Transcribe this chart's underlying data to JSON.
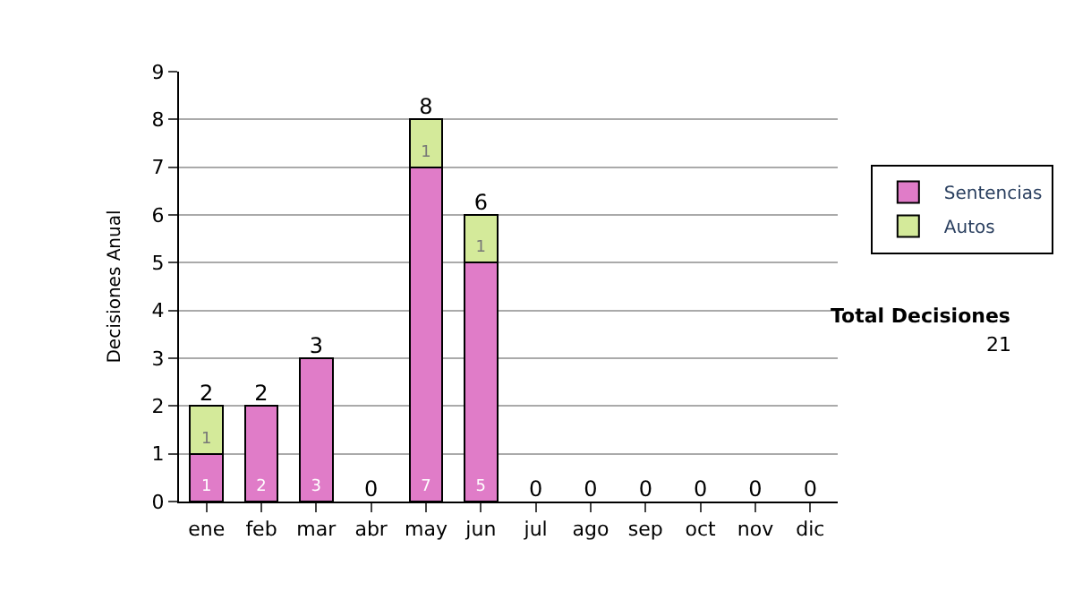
{
  "chart_data": {
    "type": "bar",
    "stacked": true,
    "ylabel": "Decisiones Anual",
    "categories": [
      "ene",
      "feb",
      "mar",
      "abr",
      "may",
      "jun",
      "jul",
      "ago",
      "sep",
      "oct",
      "nov",
      "dic"
    ],
    "series": [
      {
        "name": "Sentencias",
        "color": "#e07cc8",
        "values": [
          1,
          2,
          3,
          0,
          7,
          5,
          0,
          0,
          0,
          0,
          0,
          0
        ],
        "value_labels": [
          "1",
          "2",
          "3",
          null,
          "7",
          "5",
          null,
          null,
          null,
          null,
          null,
          null
        ]
      },
      {
        "name": "Autos",
        "color": "#d4ea9a",
        "values": [
          1,
          0,
          0,
          0,
          1,
          1,
          0,
          0,
          0,
          0,
          0,
          0
        ],
        "value_labels": [
          "1",
          null,
          null,
          null,
          "1",
          "1",
          null,
          null,
          null,
          null,
          null,
          null
        ]
      }
    ],
    "totals": [
      "2",
      "2",
      "3",
      "0",
      "8",
      "6",
      "0",
      "0",
      "0",
      "0",
      "0",
      "0"
    ],
    "ylim": [
      0,
      9
    ],
    "yticks": [
      0,
      1,
      2,
      3,
      4,
      5,
      6,
      7,
      8,
      9
    ],
    "grid": "y",
    "legend": "right",
    "annotations": [
      "Total Decisiones",
      "21"
    ]
  }
}
